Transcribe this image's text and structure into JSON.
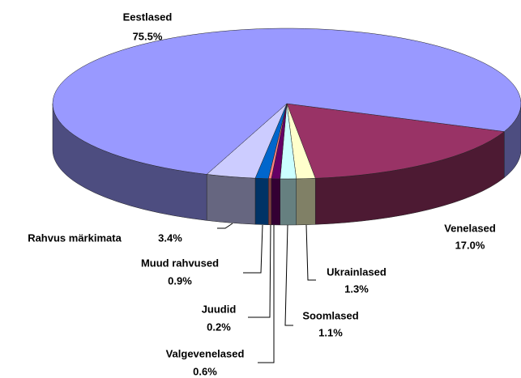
{
  "chart_data": {
    "type": "pie3d",
    "categories": [
      "Venelased",
      "Ukrainlased",
      "Soomlased",
      "Valgevenelased",
      "Juudid",
      "Muud rahvused",
      "Rahvus märkimata",
      "Eestlased"
    ],
    "values": [
      17.0,
      1.3,
      1.1,
      0.6,
      0.2,
      0.9,
      3.4,
      75.5
    ],
    "value_labels": [
      "17.0%",
      "1.3%",
      "1.1%",
      "0.6%",
      "0.2%",
      "0.9%",
      "3.4%",
      "75.5%"
    ],
    "colors": [
      "#993366",
      "#ffffcc",
      "#ccffff",
      "#660066",
      "#ff8080",
      "#0066cc",
      "#ccccff",
      "#9999ff"
    ]
  }
}
